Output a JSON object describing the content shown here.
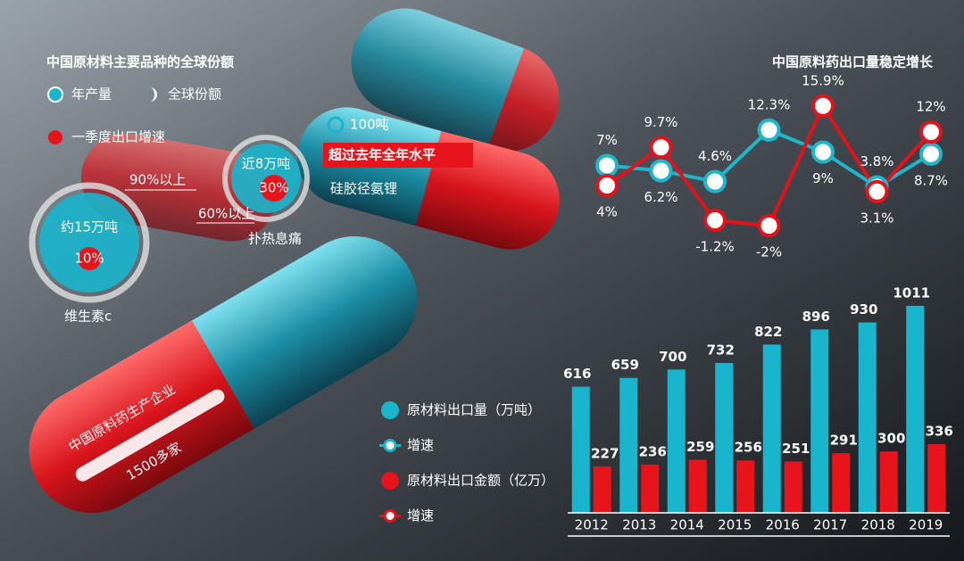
{
  "left": {
    "title": "中国原材料主要品种的全球份额",
    "legend": [
      "年产量",
      "全球份额",
      "一季度出口增速"
    ],
    "items": [
      {
        "amount": "约15万吨",
        "growth": "10%",
        "share": "90%以上",
        "name": "维生素c"
      },
      {
        "amount": "近8万吨",
        "growth": "30%",
        "share": "60%以上",
        "name": "扑热息痛"
      },
      {
        "amount": "100吨",
        "growth": "超过去年全年水平",
        "name": "硅胶径氨锂"
      }
    ],
    "capsule": [
      "中国原料药生产企业",
      "1500多家"
    ]
  },
  "chart_data": [
    {
      "type": "line",
      "title": "中国原料药出口量稳定增长",
      "ylim": [
        -4,
        18
      ],
      "series": [
        {
          "name": "增速",
          "color": "#1fb6cc",
          "values": [
            7,
            6.2,
            4.6,
            12.3,
            9,
            3.8,
            8.7
          ],
          "value_labels": [
            "7%",
            "6.2%",
            "4.6%",
            "12.3%",
            "9%",
            "3.8%",
            "8.7%"
          ]
        },
        {
          "name": "增速",
          "color": "#e3121b",
          "values": [
            4,
            9.7,
            -1.2,
            -2,
            15.9,
            3.1,
            12
          ],
          "value_labels": [
            "4%",
            "9.7%",
            "-1.2%",
            "-2%",
            "15.9%",
            "3.1%",
            "12%"
          ]
        }
      ]
    },
    {
      "type": "bar",
      "categories": [
        "2012",
        "2013",
        "2014",
        "2015",
        "2016",
        "2017",
        "2018",
        "2019"
      ],
      "ylim": [
        0,
        1050
      ],
      "series": [
        {
          "name": "原材料出口量（万吨）",
          "color": "#19b5cc",
          "values": [
            616,
            659,
            700,
            732,
            822,
            896,
            930,
            1011
          ]
        },
        {
          "name": "原材料出口金额（亿万）",
          "color": "#e8141c",
          "values": [
            227,
            236,
            259,
            256,
            251,
            291,
            300,
            336
          ]
        }
      ]
    }
  ]
}
